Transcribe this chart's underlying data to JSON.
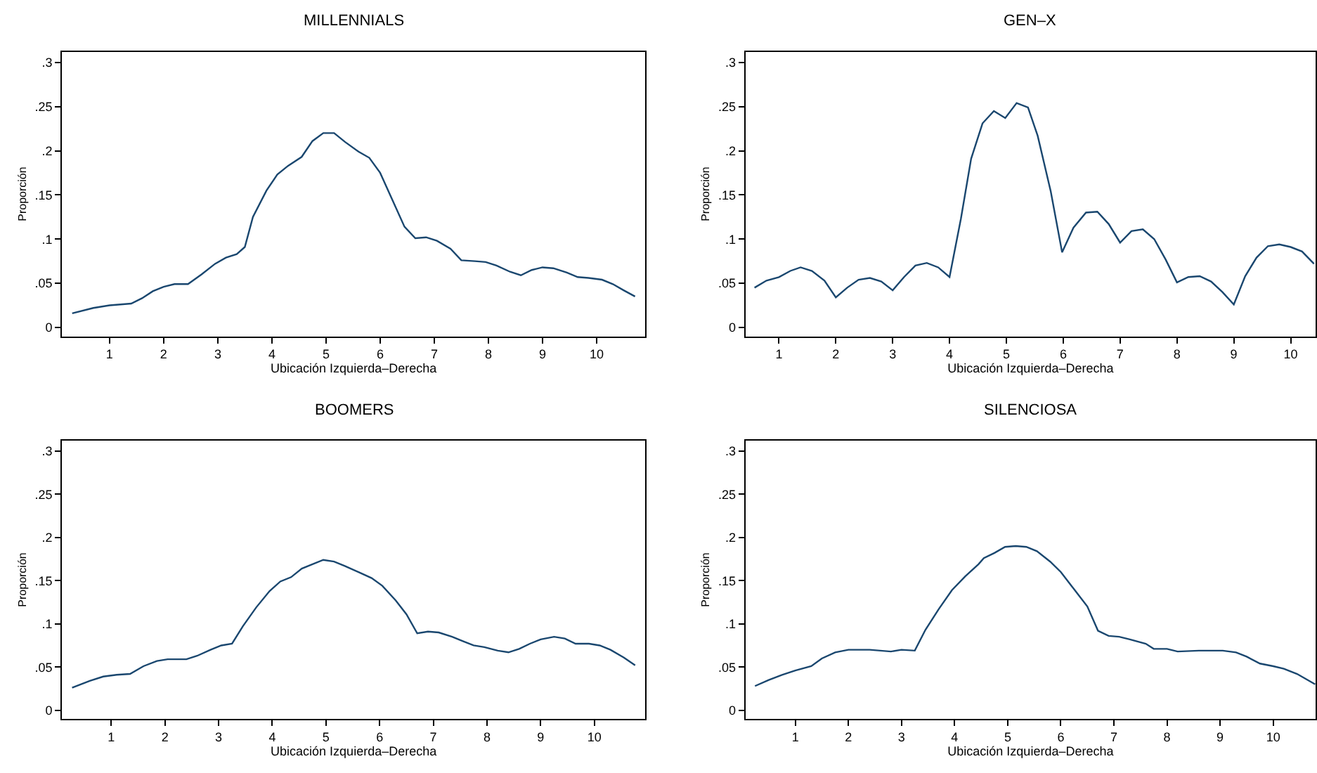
{
  "chart_data": [
    {
      "type": "line",
      "title": "MILLENNIALS",
      "xlabel": "Ubicación Izquierda–Derecha",
      "ylabel": "Proporción",
      "xlim": [
        0.12,
        10.9
      ],
      "ylim": [
        -0.01,
        0.312
      ],
      "xticks": [
        1,
        2,
        3,
        4,
        5,
        6,
        7,
        8,
        9,
        10
      ],
      "yticks": [
        0,
        {
          "value": 0.05,
          "label": ".05"
        },
        {
          "value": 0.1,
          "label": ".1"
        },
        {
          "value": 0.15,
          "label": ".15"
        },
        {
          "value": 0.2,
          "label": ".2"
        },
        {
          "value": 0.25,
          "label": ".25"
        },
        {
          "value": 0.3,
          "label": ".3"
        }
      ],
      "x": [
        0.31,
        0.7,
        1.0,
        1.4,
        1.6,
        1.8,
        2.0,
        2.2,
        2.45,
        2.7,
        2.95,
        3.15,
        3.35,
        3.5,
        3.65,
        3.9,
        4.1,
        4.3,
        4.55,
        4.75,
        4.95,
        5.15,
        5.35,
        5.6,
        5.8,
        6.0,
        6.2,
        6.45,
        6.65,
        6.85,
        7.05,
        7.3,
        7.5,
        7.75,
        7.95,
        8.15,
        8.4,
        8.6,
        8.8,
        9.0,
        9.2,
        9.45,
        9.65,
        9.85,
        10.1,
        10.3,
        10.5,
        10.71
      ],
      "series": [
        {
          "color": "#1a476f",
          "values": [
            0.016,
            0.022,
            0.025,
            0.027,
            0.033,
            0.041,
            0.046,
            0.049,
            0.049,
            0.06,
            0.072,
            0.079,
            0.083,
            0.091,
            0.125,
            0.155,
            0.173,
            0.183,
            0.193,
            0.211,
            0.22,
            0.22,
            0.21,
            0.199,
            0.192,
            0.175,
            0.148,
            0.114,
            0.101,
            0.102,
            0.098,
            0.089,
            0.076,
            0.075,
            0.074,
            0.07,
            0.063,
            0.059,
            0.065,
            0.068,
            0.067,
            0.062,
            0.057,
            0.056,
            0.054,
            0.049,
            0.042,
            0.035
          ]
        }
      ]
    },
    {
      "type": "line",
      "title": "GEN–X",
      "xlabel": "Ubicación Izquierda–Derecha",
      "ylabel": "Proporción",
      "xlim": [
        0.41,
        10.44
      ],
      "ylim": [
        -0.01,
        0.312
      ],
      "xticks": [
        1,
        2,
        3,
        4,
        5,
        6,
        7,
        8,
        9,
        10
      ],
      "yticks": [
        0,
        {
          "value": 0.05,
          "label": ".05"
        },
        {
          "value": 0.1,
          "label": ".1"
        },
        {
          "value": 0.15,
          "label": ".15"
        },
        {
          "value": 0.2,
          "label": ".2"
        },
        {
          "value": 0.25,
          "label": ".25"
        },
        {
          "value": 0.3,
          "label": ".3"
        }
      ],
      "x": [
        0.57,
        0.78,
        1.0,
        1.2,
        1.38,
        1.58,
        1.8,
        2.0,
        2.2,
        2.4,
        2.6,
        2.8,
        3.0,
        3.2,
        3.4,
        3.6,
        3.8,
        4.0,
        4.2,
        4.38,
        4.58,
        4.78,
        4.98,
        5.18,
        5.38,
        5.55,
        5.78,
        5.98,
        6.18,
        6.4,
        6.6,
        6.8,
        7.0,
        7.2,
        7.4,
        7.6,
        7.8,
        8.0,
        8.2,
        8.4,
        8.6,
        8.8,
        9.0,
        9.2,
        9.4,
        9.6,
        9.8,
        10.0,
        10.2,
        10.41
      ],
      "series": [
        {
          "color": "#1a476f",
          "values": [
            0.045,
            0.053,
            0.057,
            0.064,
            0.068,
            0.064,
            0.053,
            0.034,
            0.045,
            0.054,
            0.056,
            0.052,
            0.042,
            0.057,
            0.07,
            0.073,
            0.068,
            0.057,
            0.123,
            0.191,
            0.231,
            0.245,
            0.237,
            0.254,
            0.249,
            0.217,
            0.154,
            0.085,
            0.113,
            0.13,
            0.131,
            0.117,
            0.096,
            0.109,
            0.111,
            0.1,
            0.077,
            0.051,
            0.057,
            0.058,
            0.052,
            0.04,
            0.026,
            0.058,
            0.079,
            0.092,
            0.094,
            0.091,
            0.086,
            0.072
          ]
        }
      ]
    },
    {
      "type": "line",
      "title": "BOOMERS",
      "xlabel": "Ubicación Izquierda–Derecha",
      "ylabel": "Proporción",
      "xlim": [
        0.08,
        10.95
      ],
      "ylim": [
        -0.01,
        0.312
      ],
      "xticks": [
        1,
        2,
        3,
        4,
        5,
        6,
        7,
        8,
        9,
        10
      ],
      "yticks": [
        0,
        {
          "value": 0.05,
          "label": ".05"
        },
        {
          "value": 0.1,
          "label": ".1"
        },
        {
          "value": 0.15,
          "label": ".15"
        },
        {
          "value": 0.2,
          "label": ".2"
        },
        {
          "value": 0.25,
          "label": ".25"
        },
        {
          "value": 0.3,
          "label": ".3"
        }
      ],
      "x": [
        0.27,
        0.6,
        0.85,
        1.1,
        1.35,
        1.6,
        1.85,
        2.05,
        2.4,
        2.6,
        2.85,
        3.05,
        3.25,
        3.45,
        3.7,
        3.95,
        4.15,
        4.35,
        4.55,
        4.75,
        4.95,
        5.15,
        5.35,
        5.6,
        5.85,
        6.05,
        6.3,
        6.5,
        6.7,
        6.9,
        7.1,
        7.35,
        7.55,
        7.75,
        7.95,
        8.2,
        8.4,
        8.6,
        8.8,
        9.0,
        9.25,
        9.45,
        9.65,
        9.9,
        10.1,
        10.3,
        10.55,
        10.76
      ],
      "series": [
        {
          "color": "#1a476f",
          "values": [
            0.026,
            0.034,
            0.039,
            0.041,
            0.042,
            0.051,
            0.057,
            0.059,
            0.059,
            0.063,
            0.07,
            0.075,
            0.077,
            0.097,
            0.119,
            0.138,
            0.149,
            0.154,
            0.164,
            0.169,
            0.174,
            0.172,
            0.167,
            0.16,
            0.153,
            0.144,
            0.127,
            0.111,
            0.089,
            0.091,
            0.09,
            0.085,
            0.08,
            0.075,
            0.073,
            0.069,
            0.067,
            0.071,
            0.077,
            0.082,
            0.085,
            0.083,
            0.077,
            0.077,
            0.075,
            0.07,
            0.061,
            0.052
          ]
        }
      ]
    },
    {
      "type": "line",
      "title": "SILENCIOSA",
      "xlabel": "Ubicación Izquierda–Derecha",
      "ylabel": "Proporción",
      "xlim": [
        0.06,
        10.8
      ],
      "ylim": [
        -0.01,
        0.312
      ],
      "xticks": [
        1,
        2,
        3,
        4,
        5,
        6,
        7,
        8,
        9,
        10
      ],
      "yticks": [
        0,
        {
          "value": 0.05,
          "label": ".05"
        },
        {
          "value": 0.1,
          "label": ".1"
        },
        {
          "value": 0.15,
          "label": ".15"
        },
        {
          "value": 0.2,
          "label": ".2"
        },
        {
          "value": 0.25,
          "label": ".25"
        },
        {
          "value": 0.3,
          "label": ".3"
        }
      ],
      "x": [
        0.24,
        0.5,
        0.75,
        1.0,
        1.3,
        1.5,
        1.75,
        2.0,
        2.4,
        2.8,
        3.0,
        3.25,
        3.45,
        3.7,
        3.95,
        4.2,
        4.45,
        4.55,
        4.75,
        4.95,
        5.15,
        5.35,
        5.55,
        5.8,
        6.0,
        6.25,
        6.5,
        6.7,
        6.9,
        7.1,
        7.3,
        7.6,
        7.75,
        8.0,
        8.2,
        8.6,
        9.05,
        9.3,
        9.5,
        9.75,
        10.0,
        10.2,
        10.45,
        10.79
      ],
      "series": [
        {
          "color": "#1a476f",
          "values": [
            0.028,
            0.035,
            0.041,
            0.046,
            0.051,
            0.06,
            0.067,
            0.07,
            0.07,
            0.068,
            0.07,
            0.069,
            0.093,
            0.117,
            0.139,
            0.155,
            0.169,
            0.176,
            0.182,
            0.189,
            0.19,
            0.189,
            0.184,
            0.172,
            0.16,
            0.14,
            0.12,
            0.092,
            0.086,
            0.085,
            0.082,
            0.077,
            0.071,
            0.071,
            0.068,
            0.069,
            0.069,
            0.067,
            0.062,
            0.054,
            0.051,
            0.048,
            0.042,
            0.03
          ]
        }
      ]
    }
  ]
}
